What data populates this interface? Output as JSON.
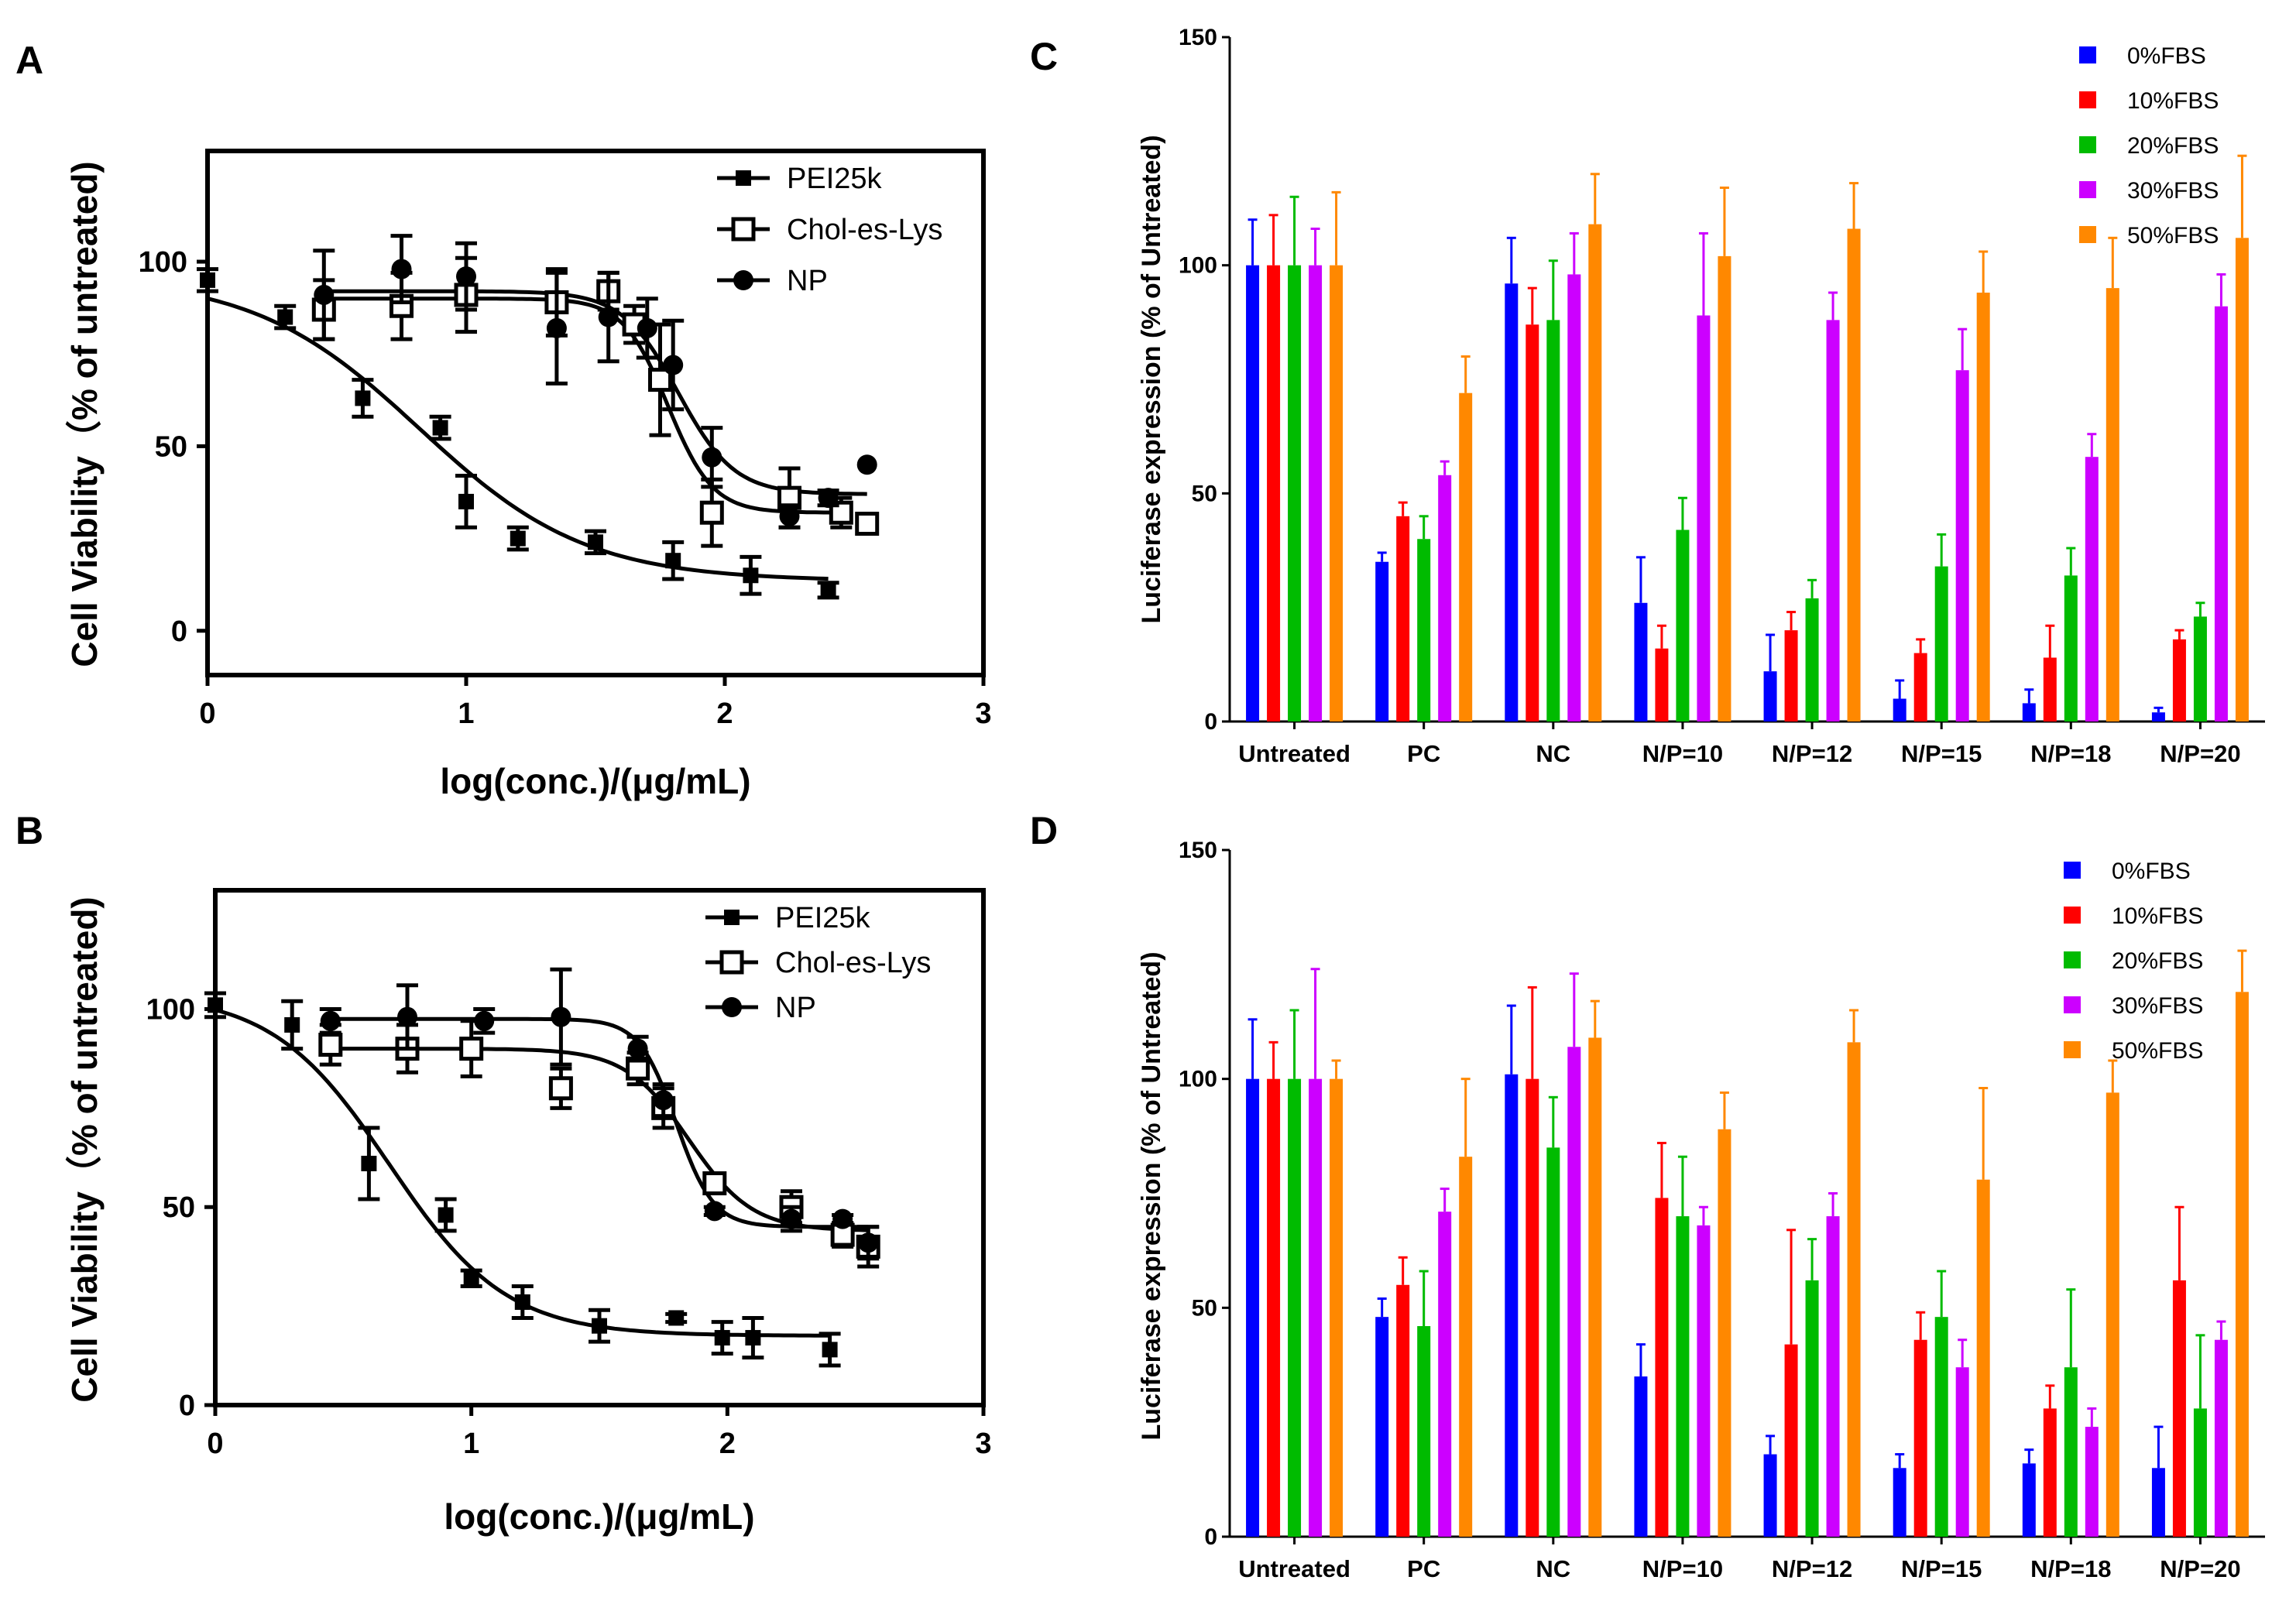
{
  "figure": {
    "panel_letters": [
      "A",
      "B",
      "C",
      "D"
    ]
  },
  "chart_data": [
    {
      "panel": "A",
      "type": "scatter",
      "title": "",
      "xlabel": "log(conc.)/(μg/mL)",
      "ylabel": "Cell Viability（% of untreated)",
      "xlim": [
        0,
        3
      ],
      "ylim": [
        -12,
        130
      ],
      "xticks": [
        0,
        1,
        2,
        3
      ],
      "yticks": [
        0,
        50,
        100
      ],
      "legend_position": "top-right",
      "series": [
        {
          "name": "PEI25k",
          "marker": "filled-square",
          "x": [
            0,
            0.3,
            0.6,
            0.9,
            1.0,
            1.2,
            1.5,
            1.8,
            2.1,
            2.4
          ],
          "y": [
            95,
            85,
            63,
            55,
            35,
            25,
            24,
            19,
            15,
            11
          ],
          "err": [
            3,
            3,
            5,
            3,
            7,
            3,
            3,
            5,
            5,
            2
          ],
          "fit": {
            "top": 96,
            "bottom": 13.5,
            "logEC50": 0.82,
            "hill": 1.35,
            "x_range": [
              0,
              2.4
            ]
          }
        },
        {
          "name": "Chol-es-Lys",
          "marker": "open-square",
          "x": [
            0.45,
            0.75,
            1.0,
            1.35,
            1.55,
            1.65,
            1.75,
            1.95,
            2.25,
            2.45,
            2.55
          ],
          "y": [
            87,
            88,
            91,
            89,
            92,
            83,
            68,
            32,
            36,
            32,
            29
          ],
          "err": [
            8,
            9,
            10,
            9,
            5,
            5,
            15,
            9,
            8,
            4,
            2
          ],
          "fit": {
            "top": 90,
            "bottom": 32,
            "logEC50": 1.78,
            "hill": 5,
            "x_range": [
              0.45,
              2.45
            ]
          }
        },
        {
          "name": "NP",
          "marker": "filled-circle",
          "x": [
            0.45,
            0.75,
            1.0,
            1.35,
            1.55,
            1.7,
            1.8,
            1.95,
            2.25,
            2.4,
            2.55
          ],
          "y": [
            91,
            98,
            96,
            82,
            85,
            82,
            72,
            47,
            31,
            36,
            45
          ],
          "err": [
            12,
            9,
            9,
            15,
            12,
            8,
            12,
            8,
            3,
            2,
            0
          ],
          "fit": {
            "top": 92,
            "bottom": 37,
            "logEC50": 1.82,
            "hill": 4,
            "x_range": [
              0.45,
              2.55
            ]
          }
        }
      ]
    },
    {
      "panel": "B",
      "type": "scatter",
      "title": "",
      "xlabel": "log(conc.)/(μg/mL)",
      "ylabel": "Cell Viability（% of untreated)",
      "xlim": [
        0,
        3
      ],
      "ylim": [
        0,
        130
      ],
      "xticks": [
        0,
        1,
        2,
        3
      ],
      "yticks": [
        0,
        50,
        100
      ],
      "legend_position": "top-right",
      "series": [
        {
          "name": "PEI25k",
          "marker": "filled-square",
          "x": [
            0,
            0.3,
            0.6,
            0.9,
            1.0,
            1.2,
            1.5,
            1.8,
            1.98,
            2.1,
            2.4
          ],
          "y": [
            101,
            96,
            61,
            48,
            32,
            26,
            20,
            22,
            17,
            17,
            14
          ],
          "err": [
            3,
            6,
            9,
            4,
            2,
            4,
            4,
            1,
            4,
            5,
            4
          ],
          "fit": {
            "top": 104,
            "bottom": 17.5,
            "logEC50": 0.68,
            "hill": 1.9,
            "x_range": [
              0,
              2.4
            ]
          }
        },
        {
          "name": "Chol-es-Lys",
          "marker": "open-square",
          "x": [
            0.45,
            0.75,
            1.0,
            1.35,
            1.65,
            1.75,
            1.95,
            2.25,
            2.45,
            2.55
          ],
          "y": [
            91,
            90,
            90,
            80,
            85,
            75,
            56,
            50,
            43,
            40
          ],
          "err": [
            5,
            6,
            7,
            5,
            4,
            5,
            2,
            4,
            3,
            5
          ],
          "fit": {
            "top": 90,
            "bottom": 44,
            "logEC50": 1.85,
            "hill": 3.5,
            "x_range": [
              0.45,
              2.55
            ]
          }
        },
        {
          "name": "NP",
          "marker": "filled-circle",
          "x": [
            0.45,
            0.75,
            1.05,
            1.35,
            1.65,
            1.75,
            1.95,
            2.25,
            2.45,
            2.55
          ],
          "y": [
            97,
            98,
            97,
            98,
            90,
            77,
            49,
            47,
            47,
            41
          ],
          "err": [
            3,
            8,
            3,
            12,
            3,
            4,
            1,
            3,
            1,
            4
          ],
          "fit": {
            "top": 97.5,
            "bottom": 45,
            "logEC50": 1.8,
            "hill": 6,
            "x_range": [
              0.45,
              2.55
            ]
          }
        }
      ]
    },
    {
      "panel": "C",
      "type": "bar",
      "title": "",
      "xlabel": "",
      "ylabel": "Luciferase expression (% of Untreated)",
      "ylim": [
        0,
        150
      ],
      "yticks": [
        0,
        50,
        100,
        150
      ],
      "legend_position": "top-right",
      "categories": [
        "Untreated",
        "PC",
        "NC",
        "N/P=10",
        "N/P=12",
        "N/P=15",
        "N/P=18",
        "N/P=20"
      ],
      "series": [
        {
          "name": "0%FBS",
          "color": "#0000ff",
          "values": [
            100,
            35,
            96,
            26,
            11,
            5,
            4,
            2
          ],
          "err": [
            10,
            2,
            10,
            10,
            8,
            4,
            3,
            1
          ]
        },
        {
          "name": "10%FBS",
          "color": "#ff0000",
          "values": [
            100,
            45,
            87,
            16,
            20,
            15,
            14,
            18
          ],
          "err": [
            11,
            3,
            8,
            5,
            4,
            3,
            7,
            2
          ]
        },
        {
          "name": "20%FBS",
          "color": "#00bb00",
          "values": [
            100,
            40,
            88,
            42,
            27,
            34,
            32,
            23
          ],
          "err": [
            15,
            5,
            13,
            7,
            4,
            7,
            6,
            3
          ]
        },
        {
          "name": "30%FBS",
          "color": "#cc00ff",
          "values": [
            100,
            54,
            98,
            89,
            88,
            77,
            58,
            91
          ],
          "err": [
            8,
            3,
            9,
            18,
            6,
            9,
            5,
            7
          ]
        },
        {
          "name": "50%FBS",
          "color": "#ff8800",
          "values": [
            100,
            72,
            109,
            102,
            108,
            94,
            95,
            106
          ],
          "err": [
            16,
            8,
            11,
            15,
            10,
            9,
            11,
            18
          ]
        }
      ]
    },
    {
      "panel": "D",
      "type": "bar",
      "title": "",
      "xlabel": "",
      "ylabel": "Luciferase expression (% of Untreated)",
      "ylim": [
        0,
        150
      ],
      "yticks": [
        0,
        50,
        100,
        150
      ],
      "legend_position": "top-right",
      "categories": [
        "Untreated",
        "PC",
        "NC",
        "N/P=10",
        "N/P=12",
        "N/P=15",
        "N/P=18",
        "N/P=20"
      ],
      "series": [
        {
          "name": "0%FBS",
          "color": "#0000ff",
          "values": [
            100,
            48,
            101,
            35,
            18,
            15,
            16,
            15
          ],
          "err": [
            13,
            4,
            15,
            7,
            4,
            3,
            3,
            9
          ]
        },
        {
          "name": "10%FBS",
          "color": "#ff0000",
          "values": [
            100,
            55,
            100,
            74,
            42,
            43,
            28,
            56
          ],
          "err": [
            8,
            6,
            20,
            12,
            25,
            6,
            5,
            16
          ]
        },
        {
          "name": "20%FBS",
          "color": "#00bb00",
          "values": [
            100,
            46,
            85,
            70,
            56,
            48,
            37,
            28
          ],
          "err": [
            15,
            12,
            11,
            13,
            9,
            10,
            17,
            16
          ]
        },
        {
          "name": "30%FBS",
          "color": "#cc00ff",
          "values": [
            100,
            71,
            107,
            68,
            70,
            37,
            24,
            43
          ],
          "err": [
            24,
            5,
            16,
            4,
            5,
            6,
            4,
            4
          ]
        },
        {
          "name": "50%FBS",
          "color": "#ff8800",
          "values": [
            100,
            83,
            109,
            89,
            108,
            78,
            97,
            119
          ],
          "err": [
            4,
            17,
            8,
            8,
            7,
            20,
            7,
            9
          ]
        }
      ]
    }
  ]
}
